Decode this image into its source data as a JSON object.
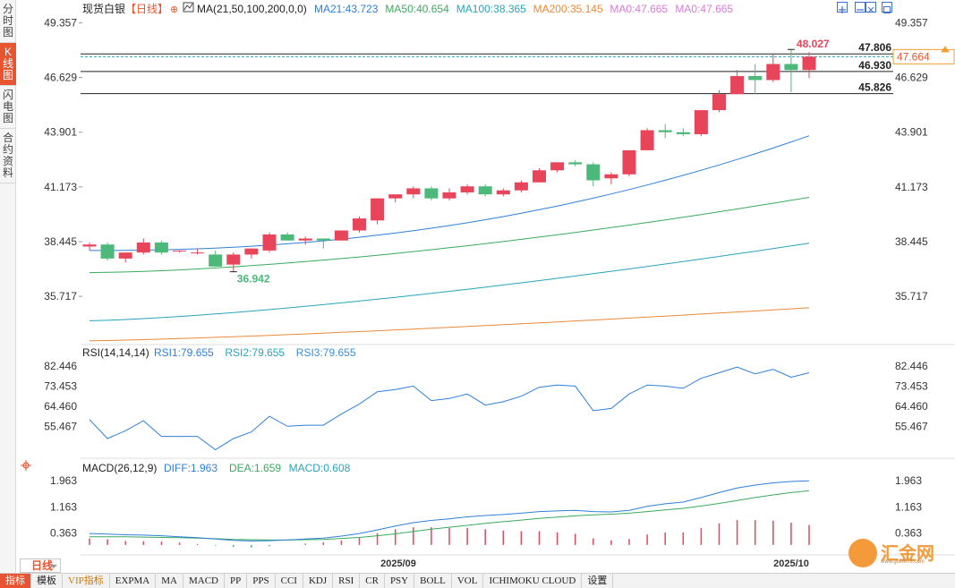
{
  "left_tabs": [
    {
      "label": "分时图",
      "chars": [
        "分",
        "时",
        "图"
      ],
      "active": false
    },
    {
      "label": "K线图",
      "chars": [
        "K",
        "线",
        "图"
      ],
      "active": true
    },
    {
      "label": "闪电图",
      "chars": [
        "闪",
        "电",
        "图"
      ],
      "active": false
    },
    {
      "label": "合约资料",
      "chars": [
        "合",
        "约",
        "资",
        "料"
      ],
      "active": false
    }
  ],
  "main_legend": {
    "instrument": "现货白银",
    "period": "【日线】",
    "ma_label": "MA(21,50,100,200,0,0)",
    "items": [
      {
        "text": "MA21:43.723",
        "color": "#2f7fd8"
      },
      {
        "text": "MA50:40.654",
        "color": "#3aaa5c"
      },
      {
        "text": "MA100:38.365",
        "color": "#2aa4b8"
      },
      {
        "text": "MA200:35.145",
        "color": "#e88a3a"
      },
      {
        "text": "MA0:47.665",
        "color": "#d87ad8"
      },
      {
        "text": "MA0:47.665",
        "color": "#d87ad8"
      }
    ]
  },
  "price_axis": {
    "ticks": [
      "49.357",
      "46.629",
      "43.901",
      "41.173",
      "38.445",
      "35.717"
    ],
    "current_price": "47.664",
    "levels": [
      {
        "label": "47.806",
        "value": 47.806
      },
      {
        "label": "46.930",
        "value": 46.93
      },
      {
        "label": "45.826",
        "value": 45.826
      }
    ],
    "high_label": "48.027",
    "low_label": "36.942"
  },
  "rsi": {
    "title": "RSI(14,14,14)",
    "items": [
      {
        "text": "RSI1:79.655",
        "color": "#2f7fd8"
      },
      {
        "text": "RSI2:79.655",
        "color": "#2aa4b8"
      },
      {
        "text": "RSI3:79.655",
        "color": "#3a8fd8"
      }
    ],
    "ticks": [
      "82.446",
      "73.453",
      "64.460",
      "55.467"
    ],
    "values": [
      58.5,
      50.0,
      53.5,
      58.0,
      51.0,
      51.0,
      51.0,
      45.0,
      50.0,
      53.0,
      60.0,
      55.5,
      56.0,
      56.0,
      61.0,
      65.5,
      71.0,
      72.0,
      73.5,
      67.0,
      68.0,
      70.0,
      65.0,
      66.5,
      69.0,
      73.0,
      74.0,
      73.5,
      62.5,
      63.5,
      70.0,
      74.0,
      73.5,
      72.5,
      77.0,
      79.5,
      82.0,
      79.0,
      81.0,
      77.5,
      79.5
    ]
  },
  "macd": {
    "title": "MACD(26,12,9)",
    "items": [
      {
        "text": "DIFF:1.963",
        "color": "#2f7fd8"
      },
      {
        "text": "DEA:1.659",
        "color": "#3aaa5c"
      },
      {
        "text": "MACD:0.608",
        "color": "#2aa4b8"
      }
    ],
    "ticks": [
      "1.963",
      "1.163",
      "0.363"
    ],
    "diff": [
      0.35,
      0.33,
      0.31,
      0.3,
      0.28,
      0.25,
      0.22,
      0.18,
      0.14,
      0.12,
      0.13,
      0.15,
      0.18,
      0.21,
      0.27,
      0.35,
      0.46,
      0.58,
      0.68,
      0.75,
      0.8,
      0.86,
      0.9,
      0.93,
      0.97,
      1.02,
      1.04,
      1.06,
      1.02,
      1.01,
      1.06,
      1.18,
      1.26,
      1.31,
      1.45,
      1.6,
      1.74,
      1.83,
      1.9,
      1.94,
      1.963
    ],
    "dea": [
      0.25,
      0.25,
      0.25,
      0.24,
      0.23,
      0.22,
      0.21,
      0.19,
      0.17,
      0.16,
      0.15,
      0.15,
      0.16,
      0.17,
      0.2,
      0.23,
      0.28,
      0.34,
      0.41,
      0.48,
      0.54,
      0.6,
      0.66,
      0.71,
      0.76,
      0.81,
      0.85,
      0.89,
      0.92,
      0.94,
      0.97,
      1.02,
      1.07,
      1.12,
      1.19,
      1.27,
      1.36,
      1.45,
      1.53,
      1.6,
      1.659
    ],
    "hist": [
      0.2,
      0.17,
      0.12,
      0.11,
      0.1,
      0.07,
      0.03,
      -0.02,
      -0.06,
      -0.08,
      -0.04,
      0.0,
      0.04,
      0.08,
      0.14,
      0.24,
      0.36,
      0.48,
      0.54,
      0.54,
      0.52,
      0.52,
      0.48,
      0.44,
      0.42,
      0.42,
      0.38,
      0.34,
      0.2,
      0.14,
      0.18,
      0.32,
      0.38,
      0.38,
      0.52,
      0.66,
      0.76,
      0.76,
      0.74,
      0.68,
      0.608
    ]
  },
  "x_axis": {
    "labels": [
      "2025/09",
      "2025/10"
    ]
  },
  "period_selector": {
    "label": "日线"
  },
  "toolbar": {
    "items": [
      {
        "label": "指标",
        "active": true
      },
      {
        "label": "模板"
      },
      {
        "label": "VIP指标",
        "vip": true
      },
      {
        "label": "EXPMA"
      },
      {
        "label": "MA"
      },
      {
        "label": "MACD"
      },
      {
        "label": "PP"
      },
      {
        "label": "PPS"
      },
      {
        "label": "CCI"
      },
      {
        "label": "KDJ"
      },
      {
        "label": "RSI"
      },
      {
        "label": "CR"
      },
      {
        "label": "PSY"
      },
      {
        "label": "BOLL"
      },
      {
        "label": "VOL"
      },
      {
        "label": "ICHIMOKU CLOUD"
      },
      {
        "label": "设置"
      }
    ]
  },
  "logo": {
    "text": "汇金网",
    "url": "www.gold678.com"
  },
  "colors": {
    "up": "#e8445a",
    "down": "#4cb87a",
    "accent": "#e8542f"
  },
  "chart_data": {
    "type": "candlestick",
    "title": "现货白银【日线】",
    "candles": [
      {
        "o": 38.2,
        "h": 38.4,
        "l": 38.0,
        "c": 38.3
      },
      {
        "o": 38.3,
        "h": 38.4,
        "l": 37.5,
        "c": 37.6
      },
      {
        "o": 37.6,
        "h": 37.9,
        "l": 37.4,
        "c": 37.9
      },
      {
        "o": 37.9,
        "h": 38.6,
        "l": 37.8,
        "c": 38.4
      },
      {
        "o": 38.4,
        "h": 38.5,
        "l": 37.8,
        "c": 37.9
      },
      {
        "o": 38.0,
        "h": 38.0,
        "l": 37.9,
        "c": 38.0
      },
      {
        "o": 37.9,
        "h": 38.1,
        "l": 37.8,
        "c": 37.9
      },
      {
        "o": 37.8,
        "h": 38.0,
        "l": 37.2,
        "c": 37.2
      },
      {
        "o": 37.3,
        "h": 37.9,
        "l": 36.942,
        "c": 37.8
      },
      {
        "o": 37.8,
        "h": 38.1,
        "l": 37.6,
        "c": 38.1
      },
      {
        "o": 38.0,
        "h": 38.9,
        "l": 37.9,
        "c": 38.8
      },
      {
        "o": 38.8,
        "h": 38.9,
        "l": 38.5,
        "c": 38.5
      },
      {
        "o": 38.5,
        "h": 38.7,
        "l": 38.3,
        "c": 38.6
      },
      {
        "o": 38.6,
        "h": 38.6,
        "l": 38.1,
        "c": 38.5
      },
      {
        "o": 38.5,
        "h": 39.0,
        "l": 38.5,
        "c": 39.0
      },
      {
        "o": 39.0,
        "h": 39.7,
        "l": 38.9,
        "c": 39.6
      },
      {
        "o": 39.5,
        "h": 40.6,
        "l": 39.3,
        "c": 40.6
      },
      {
        "o": 40.6,
        "h": 40.8,
        "l": 40.4,
        "c": 40.8
      },
      {
        "o": 40.8,
        "h": 41.2,
        "l": 40.6,
        "c": 41.1
      },
      {
        "o": 41.1,
        "h": 41.2,
        "l": 40.5,
        "c": 40.6
      },
      {
        "o": 40.6,
        "h": 41.1,
        "l": 40.5,
        "c": 40.9
      },
      {
        "o": 40.9,
        "h": 41.3,
        "l": 40.8,
        "c": 41.2
      },
      {
        "o": 41.2,
        "h": 41.3,
        "l": 40.7,
        "c": 40.8
      },
      {
        "o": 40.8,
        "h": 41.1,
        "l": 40.7,
        "c": 41.0
      },
      {
        "o": 41.0,
        "h": 41.5,
        "l": 40.9,
        "c": 41.4
      },
      {
        "o": 41.4,
        "h": 42.1,
        "l": 41.4,
        "c": 42.0
      },
      {
        "o": 42.0,
        "h": 42.4,
        "l": 41.9,
        "c": 42.4
      },
      {
        "o": 42.4,
        "h": 42.5,
        "l": 42.2,
        "c": 42.3
      },
      {
        "o": 42.3,
        "h": 42.4,
        "l": 41.2,
        "c": 41.5
      },
      {
        "o": 41.6,
        "h": 41.9,
        "l": 41.3,
        "c": 41.8
      },
      {
        "o": 41.8,
        "h": 43.0,
        "l": 41.7,
        "c": 43.0
      },
      {
        "o": 43.0,
        "h": 44.1,
        "l": 43.0,
        "c": 44.0
      },
      {
        "o": 44.0,
        "h": 44.3,
        "l": 43.6,
        "c": 43.9
      },
      {
        "o": 43.9,
        "h": 44.1,
        "l": 43.7,
        "c": 43.8
      },
      {
        "o": 43.8,
        "h": 45.0,
        "l": 43.7,
        "c": 45.0
      },
      {
        "o": 45.0,
        "h": 46.0,
        "l": 44.9,
        "c": 45.8
      },
      {
        "o": 45.8,
        "h": 47.0,
        "l": 45.8,
        "c": 46.7
      },
      {
        "o": 46.7,
        "h": 47.3,
        "l": 45.8,
        "c": 46.5
      },
      {
        "o": 46.5,
        "h": 47.8,
        "l": 46.4,
        "c": 47.3
      },
      {
        "o": 47.3,
        "h": 48.027,
        "l": 45.9,
        "c": 47.0
      },
      {
        "o": 47.0,
        "h": 47.9,
        "l": 46.6,
        "c": 47.664
      }
    ],
    "ma21": {
      "from": 38.0,
      "to": 43.723
    },
    "ma50": {
      "from": 36.9,
      "to": 40.654
    },
    "ma100": {
      "from": 34.5,
      "to": 38.365
    },
    "ma200": {
      "from": 33.5,
      "to": 35.145
    },
    "ylim": [
      33.4,
      49.6
    ]
  }
}
